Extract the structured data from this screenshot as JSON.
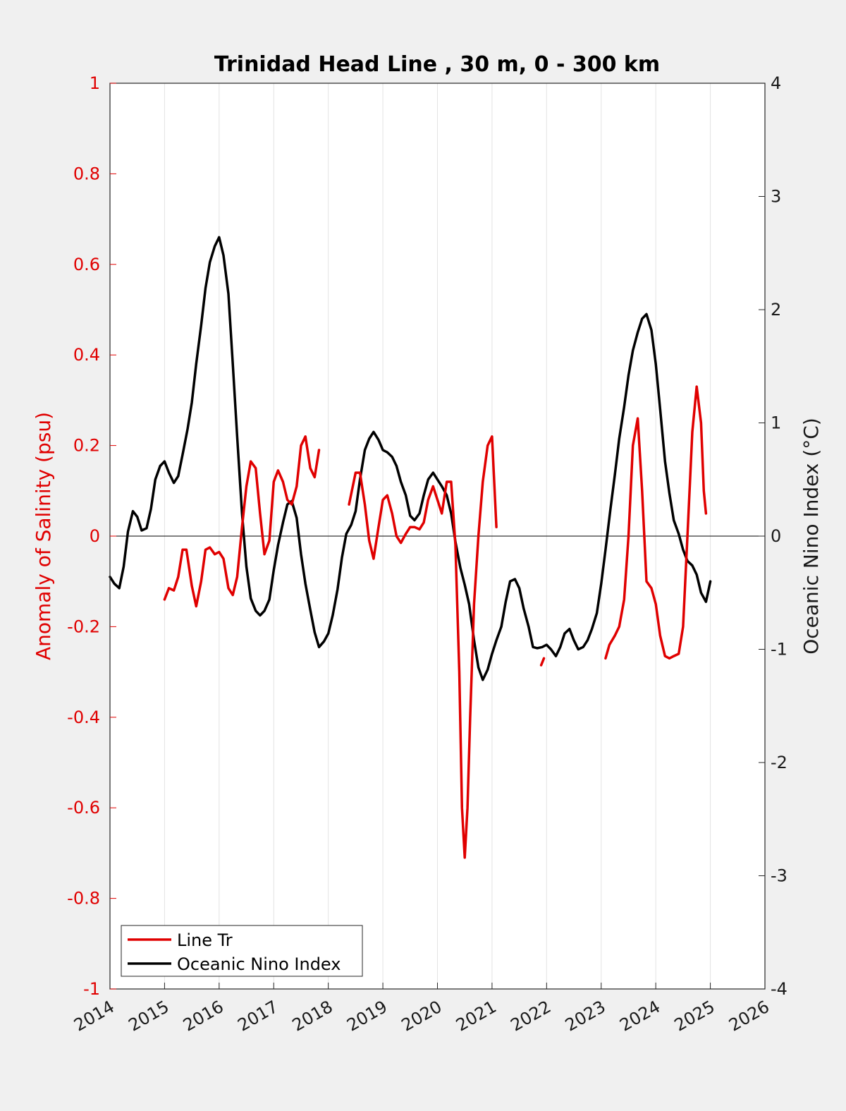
{
  "chart_data": {
    "type": "line",
    "title": "Trinidad Head Line , 30 m, 0 - 300 km",
    "xlim": [
      2014,
      2026
    ],
    "x_ticks": [
      "2014",
      "2015",
      "2016",
      "2017",
      "2018",
      "2019",
      "2020",
      "2021",
      "2022",
      "2023",
      "2024",
      "2025",
      "2026"
    ],
    "grid": "vertical",
    "legend_position": "bottom-left",
    "left_axis": {
      "label": "Anomaly of Salinity (psu)",
      "color": "#e00000",
      "ylim": [
        -1,
        1
      ],
      "ticks": [
        "-1",
        "-0.8",
        "-0.6",
        "-0.4",
        "-0.2",
        "0",
        "0.2",
        "0.4",
        "0.6",
        "0.8",
        "1"
      ]
    },
    "right_axis": {
      "label": "Oceanic Nino Index (°C)",
      "color": "#000000",
      "ylim": [
        -4,
        4
      ],
      "ticks": [
        "-4",
        "-3",
        "-2",
        "-1",
        "0",
        "1",
        "2",
        "3",
        "4"
      ]
    },
    "series": [
      {
        "name": "Line Tr",
        "axis": "left",
        "color": "#e00000",
        "segments": [
          [
            [
              2015.0,
              -0.14
            ],
            [
              2015.08,
              -0.115
            ],
            [
              2015.17,
              -0.12
            ],
            [
              2015.25,
              -0.09
            ],
            [
              2015.33,
              -0.03
            ],
            [
              2015.4,
              -0.03
            ],
            [
              2015.5,
              -0.11
            ],
            [
              2015.58,
              -0.155
            ],
            [
              2015.67,
              -0.1
            ],
            [
              2015.75,
              -0.03
            ],
            [
              2015.83,
              -0.025
            ],
            [
              2015.92,
              -0.04
            ],
            [
              2016.0,
              -0.035
            ],
            [
              2016.08,
              -0.05
            ],
            [
              2016.17,
              -0.115
            ],
            [
              2016.25,
              -0.13
            ],
            [
              2016.33,
              -0.09
            ],
            [
              2016.42,
              0.02
            ],
            [
              2016.5,
              0.11
            ],
            [
              2016.58,
              0.165
            ],
            [
              2016.67,
              0.15
            ],
            [
              2016.75,
              0.05
            ],
            [
              2016.83,
              -0.04
            ],
            [
              2016.92,
              -0.01
            ],
            [
              2017.0,
              0.12
            ],
            [
              2017.08,
              0.145
            ],
            [
              2017.17,
              0.12
            ],
            [
              2017.25,
              0.08
            ],
            [
              2017.33,
              0.07
            ],
            [
              2017.42,
              0.11
            ],
            [
              2017.5,
              0.2
            ],
            [
              2017.58,
              0.22
            ],
            [
              2017.67,
              0.15
            ],
            [
              2017.75,
              0.13
            ],
            [
              2017.83,
              0.19
            ]
          ],
          [
            [
              2018.38,
              0.07
            ],
            [
              2018.5,
              0.14
            ],
            [
              2018.58,
              0.14
            ],
            [
              2018.67,
              0.07
            ],
            [
              2018.75,
              -0.01
            ],
            [
              2018.83,
              -0.05
            ],
            [
              2018.92,
              0.02
            ],
            [
              2019.0,
              0.08
            ],
            [
              2019.08,
              0.09
            ],
            [
              2019.17,
              0.05
            ],
            [
              2019.25,
              0.0
            ],
            [
              2019.33,
              -0.015
            ],
            [
              2019.42,
              0.005
            ],
            [
              2019.5,
              0.02
            ],
            [
              2019.58,
              0.02
            ],
            [
              2019.67,
              0.015
            ],
            [
              2019.75,
              0.03
            ],
            [
              2019.83,
              0.08
            ],
            [
              2019.92,
              0.11
            ],
            [
              2020.0,
              0.08
            ],
            [
              2020.08,
              0.05
            ],
            [
              2020.17,
              0.12
            ],
            [
              2020.25,
              0.12
            ],
            [
              2020.33,
              -0.02
            ],
            [
              2020.4,
              -0.3
            ],
            [
              2020.45,
              -0.6
            ],
            [
              2020.5,
              -0.71
            ],
            [
              2020.55,
              -0.6
            ],
            [
              2020.6,
              -0.4
            ],
            [
              2020.67,
              -0.15
            ],
            [
              2020.75,
              0.0
            ],
            [
              2020.83,
              0.12
            ],
            [
              2020.92,
              0.2
            ],
            [
              2021.0,
              0.22
            ],
            [
              2021.08,
              0.02
            ]
          ],
          [
            [
              2021.9,
              -0.285
            ],
            [
              2021.95,
              -0.27
            ]
          ],
          [
            [
              2023.08,
              -0.27
            ],
            [
              2023.15,
              -0.24
            ],
            [
              2023.25,
              -0.22
            ],
            [
              2023.33,
              -0.2
            ],
            [
              2023.42,
              -0.14
            ],
            [
              2023.5,
              0.0
            ],
            [
              2023.58,
              0.2
            ],
            [
              2023.67,
              0.26
            ],
            [
              2023.75,
              0.1
            ],
            [
              2023.83,
              -0.1
            ],
            [
              2023.92,
              -0.115
            ],
            [
              2024.0,
              -0.15
            ],
            [
              2024.08,
              -0.22
            ],
            [
              2024.17,
              -0.265
            ],
            [
              2024.25,
              -0.27
            ],
            [
              2024.33,
              -0.265
            ],
            [
              2024.42,
              -0.26
            ],
            [
              2024.5,
              -0.2
            ],
            [
              2024.58,
              0.0
            ],
            [
              2024.67,
              0.23
            ],
            [
              2024.75,
              0.33
            ],
            [
              2024.83,
              0.25
            ],
            [
              2024.88,
              0.1
            ],
            [
              2024.92,
              0.05
            ]
          ]
        ]
      },
      {
        "name": "Oceanic Nino Index",
        "axis": "right",
        "color": "#000000",
        "segments": [
          [
            [
              2014.0,
              -0.36
            ],
            [
              2014.08,
              -0.42
            ],
            [
              2014.17,
              -0.46
            ],
            [
              2014.25,
              -0.27
            ],
            [
              2014.33,
              0.04
            ],
            [
              2014.42,
              0.22
            ],
            [
              2014.5,
              0.17
            ],
            [
              2014.58,
              0.05
            ],
            [
              2014.67,
              0.07
            ],
            [
              2014.75,
              0.24
            ],
            [
              2014.83,
              0.5
            ],
            [
              2014.92,
              0.62
            ],
            [
              2015.0,
              0.66
            ],
            [
              2015.08,
              0.56
            ],
            [
              2015.17,
              0.47
            ],
            [
              2015.25,
              0.53
            ],
            [
              2015.33,
              0.72
            ],
            [
              2015.42,
              0.94
            ],
            [
              2015.5,
              1.18
            ],
            [
              2015.58,
              1.52
            ],
            [
              2015.67,
              1.86
            ],
            [
              2015.75,
              2.19
            ],
            [
              2015.83,
              2.42
            ],
            [
              2015.92,
              2.56
            ],
            [
              2016.0,
              2.64
            ],
            [
              2016.08,
              2.48
            ],
            [
              2016.17,
              2.14
            ],
            [
              2016.25,
              1.52
            ],
            [
              2016.33,
              0.88
            ],
            [
              2016.42,
              0.2
            ],
            [
              2016.5,
              -0.27
            ],
            [
              2016.58,
              -0.55
            ],
            [
              2016.67,
              -0.66
            ],
            [
              2016.75,
              -0.7
            ],
            [
              2016.83,
              -0.66
            ],
            [
              2016.92,
              -0.56
            ],
            [
              2017.0,
              -0.3
            ],
            [
              2017.08,
              -0.08
            ],
            [
              2017.17,
              0.12
            ],
            [
              2017.25,
              0.28
            ],
            [
              2017.33,
              0.31
            ],
            [
              2017.42,
              0.16
            ],
            [
              2017.5,
              -0.16
            ],
            [
              2017.58,
              -0.42
            ],
            [
              2017.67,
              -0.65
            ],
            [
              2017.75,
              -0.85
            ],
            [
              2017.83,
              -0.98
            ],
            [
              2017.92,
              -0.93
            ],
            [
              2018.0,
              -0.86
            ],
            [
              2018.08,
              -0.7
            ],
            [
              2018.17,
              -0.47
            ],
            [
              2018.25,
              -0.19
            ],
            [
              2018.33,
              0.02
            ],
            [
              2018.42,
              0.1
            ],
            [
              2018.5,
              0.22
            ],
            [
              2018.58,
              0.5
            ],
            [
              2018.67,
              0.76
            ],
            [
              2018.75,
              0.86
            ],
            [
              2018.83,
              0.92
            ],
            [
              2018.92,
              0.85
            ],
            [
              2019.0,
              0.76
            ],
            [
              2019.08,
              0.74
            ],
            [
              2019.17,
              0.7
            ],
            [
              2019.25,
              0.62
            ],
            [
              2019.33,
              0.48
            ],
            [
              2019.42,
              0.36
            ],
            [
              2019.5,
              0.18
            ],
            [
              2019.58,
              0.14
            ],
            [
              2019.67,
              0.2
            ],
            [
              2019.75,
              0.36
            ],
            [
              2019.83,
              0.5
            ],
            [
              2019.92,
              0.56
            ],
            [
              2020.0,
              0.5
            ],
            [
              2020.08,
              0.44
            ],
            [
              2020.17,
              0.36
            ],
            [
              2020.25,
              0.2
            ],
            [
              2020.33,
              -0.05
            ],
            [
              2020.42,
              -0.28
            ],
            [
              2020.5,
              -0.43
            ],
            [
              2020.58,
              -0.6
            ],
            [
              2020.67,
              -0.92
            ],
            [
              2020.75,
              -1.16
            ],
            [
              2020.83,
              -1.27
            ],
            [
              2020.92,
              -1.18
            ],
            [
              2021.0,
              -1.04
            ],
            [
              2021.08,
              -0.92
            ],
            [
              2021.17,
              -0.8
            ],
            [
              2021.25,
              -0.58
            ],
            [
              2021.33,
              -0.4
            ],
            [
              2021.42,
              -0.38
            ],
            [
              2021.5,
              -0.46
            ],
            [
              2021.58,
              -0.64
            ],
            [
              2021.67,
              -0.8
            ],
            [
              2021.75,
              -0.98
            ],
            [
              2021.83,
              -0.99
            ],
            [
              2021.92,
              -0.98
            ],
            [
              2022.0,
              -0.96
            ],
            [
              2022.08,
              -1.0
            ],
            [
              2022.17,
              -1.06
            ],
            [
              2022.25,
              -0.98
            ],
            [
              2022.33,
              -0.86
            ],
            [
              2022.42,
              -0.82
            ],
            [
              2022.5,
              -0.92
            ],
            [
              2022.58,
              -1.0
            ],
            [
              2022.67,
              -0.98
            ],
            [
              2022.75,
              -0.92
            ],
            [
              2022.83,
              -0.82
            ],
            [
              2022.92,
              -0.68
            ],
            [
              2023.0,
              -0.42
            ],
            [
              2023.08,
              -0.12
            ],
            [
              2023.17,
              0.24
            ],
            [
              2023.25,
              0.54
            ],
            [
              2023.33,
              0.86
            ],
            [
              2023.42,
              1.14
            ],
            [
              2023.5,
              1.42
            ],
            [
              2023.58,
              1.64
            ],
            [
              2023.67,
              1.8
            ],
            [
              2023.75,
              1.92
            ],
            [
              2023.83,
              1.96
            ],
            [
              2023.92,
              1.82
            ],
            [
              2024.0,
              1.52
            ],
            [
              2024.08,
              1.12
            ],
            [
              2024.17,
              0.66
            ],
            [
              2024.25,
              0.38
            ],
            [
              2024.33,
              0.14
            ],
            [
              2024.42,
              0.02
            ],
            [
              2024.5,
              -0.12
            ],
            [
              2024.58,
              -0.22
            ],
            [
              2024.67,
              -0.26
            ],
            [
              2024.75,
              -0.34
            ],
            [
              2024.83,
              -0.5
            ],
            [
              2024.92,
              -0.58
            ],
            [
              2025.0,
              -0.4
            ]
          ]
        ]
      }
    ]
  },
  "legend": {
    "items": [
      {
        "label": "Line Tr",
        "color": "#e00000"
      },
      {
        "label": "Oceanic Nino Index",
        "color": "#000000"
      }
    ]
  }
}
